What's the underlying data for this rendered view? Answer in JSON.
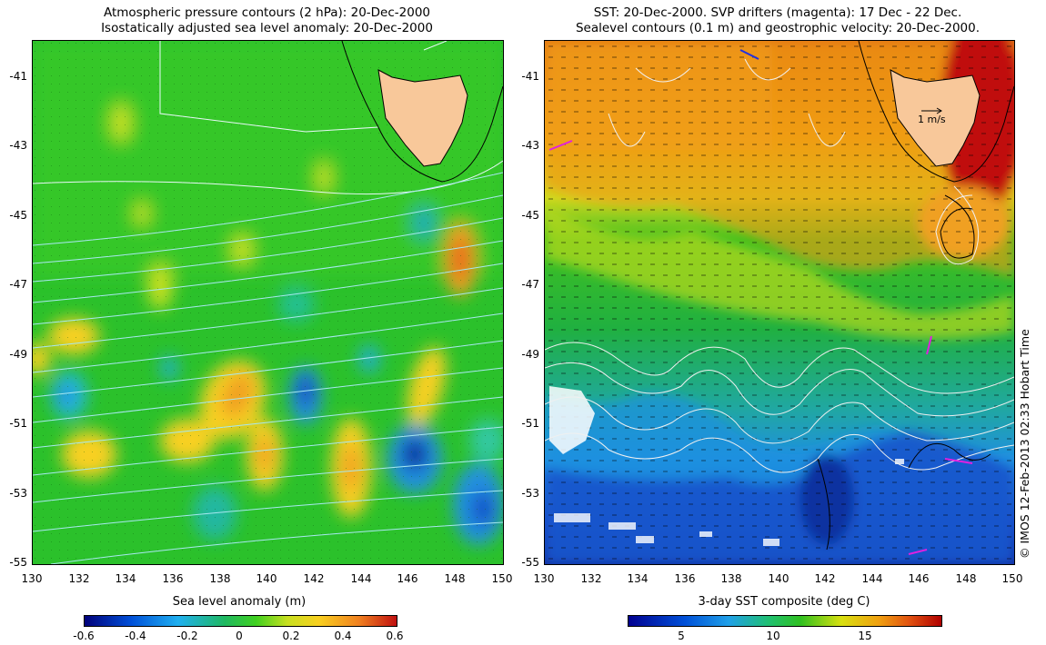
{
  "left_panel": {
    "title_line1": "Atmospheric pressure contours (2 hPa): 20-Dec-2000",
    "title_line2": "Isostatically adjusted sea level anomaly: 20-Dec-2000",
    "lat_labels": [
      "-41",
      "-43",
      "-45",
      "-47",
      "-49",
      "-51",
      "-53",
      "-55"
    ],
    "lon_labels": [
      "130",
      "132",
      "134",
      "136",
      "138",
      "140",
      "142",
      "144",
      "146",
      "148",
      "150"
    ],
    "colorbar_label": "Sea level anomaly (m)",
    "colorbar_ticks": [
      "-0.6",
      "-0.4",
      "-0.2",
      "0",
      "0.2",
      "0.4",
      "0.6"
    ]
  },
  "right_panel": {
    "title_line1": "SST: 20-Dec-2000. SVP drifters (magenta): 17 Dec - 22 Dec.",
    "title_line2": "Sealevel contours (0.1 m) and geostrophic velocity: 20-Dec-2000.",
    "lat_labels": [
      "-41",
      "-43",
      "-45",
      "-47",
      "-49",
      "-51",
      "-53",
      "-55"
    ],
    "lon_labels": [
      "130",
      "132",
      "134",
      "136",
      "138",
      "140",
      "142",
      "144",
      "146",
      "148",
      "150"
    ],
    "velocity_scale_label": "1 m/s",
    "colorbar_label": "3-day SST composite (deg C)",
    "colorbar_ticks": [
      "5",
      "10",
      "15"
    ]
  },
  "copyright": "© IMOS 12-Feb-2013 02:33 Hobart Time",
  "colors": {
    "land": "#f8c89a",
    "sla_scale": [
      "#00007a",
      "#0050d8",
      "#20b0f0",
      "#1fb860",
      "#40d020",
      "#c8e020",
      "#f8d020",
      "#f08020",
      "#c01010"
    ],
    "sst_scale": [
      "#000090",
      "#0050d8",
      "#20a0e8",
      "#20c070",
      "#30c020",
      "#d8e010",
      "#f0a010",
      "#e05010",
      "#b00000"
    ]
  }
}
